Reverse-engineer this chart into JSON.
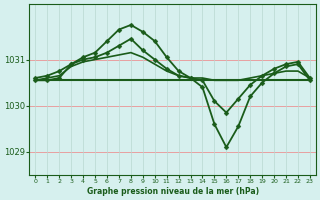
{
  "title": "Graphe pression niveau de la mer (hPa)",
  "background_color": "#d6f0ee",
  "grid_color_h": "#e8a0a0",
  "grid_color_v": "#b8d8d0",
  "line_color": "#1a5c1a",
  "xlim": [
    -0.5,
    23.5
  ],
  "ylim": [
    1028.5,
    1032.2
  ],
  "yticks": [
    1029,
    1030,
    1031
  ],
  "xticks": [
    0,
    1,
    2,
    3,
    4,
    5,
    6,
    7,
    8,
    9,
    10,
    11,
    12,
    13,
    14,
    15,
    16,
    17,
    18,
    19,
    20,
    21,
    22,
    23
  ],
  "series": [
    {
      "x": [
        0,
        1,
        2,
        3,
        4,
        5,
        6,
        7,
        8,
        9,
        10,
        11,
        12,
        13,
        14,
        15,
        16,
        17,
        18,
        19,
        20,
        21,
        22,
        23
      ],
      "y": [
        1030.55,
        1030.55,
        1030.55,
        1030.55,
        1030.55,
        1030.55,
        1030.55,
        1030.55,
        1030.55,
        1030.55,
        1030.55,
        1030.55,
        1030.55,
        1030.55,
        1030.55,
        1030.55,
        1030.55,
        1030.55,
        1030.55,
        1030.55,
        1030.55,
        1030.55,
        1030.55,
        1030.55
      ],
      "marker": null,
      "lw": 1.5
    },
    {
      "x": [
        0,
        1,
        2,
        3,
        4,
        5,
        6,
        7,
        8,
        9,
        10,
        11,
        12,
        13,
        14,
        15,
        16,
        17,
        18,
        19,
        20,
        21,
        22,
        23
      ],
      "y": [
        1030.55,
        1030.6,
        1030.65,
        1030.85,
        1030.95,
        1031.0,
        1031.05,
        1031.1,
        1031.15,
        1031.05,
        1030.9,
        1030.75,
        1030.65,
        1030.6,
        1030.6,
        1030.55,
        1030.55,
        1030.55,
        1030.6,
        1030.65,
        1030.7,
        1030.75,
        1030.75,
        1030.6
      ],
      "marker": null,
      "lw": 1.2
    },
    {
      "x": [
        0,
        1,
        2,
        3,
        4,
        5,
        6,
        7,
        8,
        9,
        10,
        11,
        12,
        13,
        14,
        15,
        16,
        17,
        18,
        19,
        20,
        21,
        22,
        23
      ],
      "y": [
        1030.55,
        1030.55,
        1030.6,
        1030.9,
        1031.05,
        1031.15,
        1031.4,
        1031.65,
        1031.75,
        1031.6,
        1031.4,
        1031.05,
        1030.75,
        1030.6,
        1030.4,
        1029.6,
        1029.1,
        1029.55,
        1030.2,
        1030.5,
        1030.7,
        1030.85,
        1030.9,
        1030.55
      ],
      "marker": "D",
      "lw": 1.3
    },
    {
      "x": [
        0,
        1,
        2,
        3,
        4,
        5,
        6,
        7,
        8,
        9,
        10,
        11,
        12,
        13,
        14,
        15,
        16,
        17,
        18,
        19,
        20,
        21,
        22,
        23
      ],
      "y": [
        1030.6,
        1030.65,
        1030.75,
        1030.9,
        1031.0,
        1031.05,
        1031.15,
        1031.3,
        1031.45,
        1031.2,
        1031.0,
        1030.8,
        1030.65,
        1030.6,
        1030.55,
        1030.1,
        1029.85,
        1030.15,
        1030.45,
        1030.65,
        1030.8,
        1030.9,
        1030.95,
        1030.6
      ],
      "marker": "D",
      "lw": 1.3
    }
  ]
}
